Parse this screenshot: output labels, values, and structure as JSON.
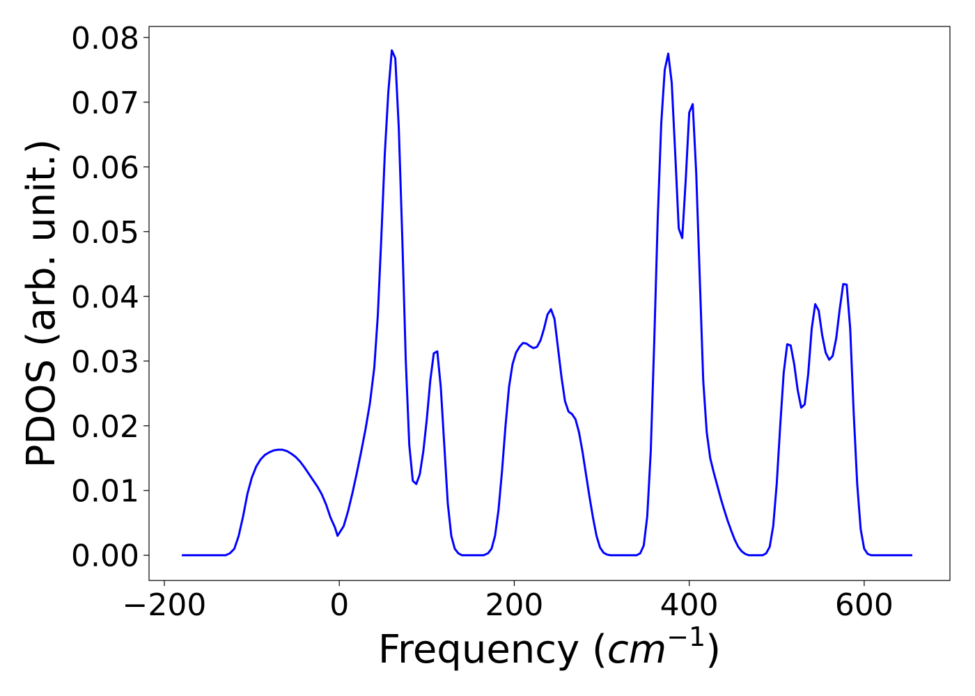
{
  "chart_data": {
    "type": "line",
    "xlabel": {
      "prefix": "Frequency (",
      "italic": "cm",
      "sup": "−1",
      "suffix": ")"
    },
    "ylabel": "PDOS (arb. unit.)",
    "x": [
      -180,
      -130,
      -125,
      -120,
      -115,
      -110,
      -105,
      -100,
      -95,
      -90,
      -85,
      -80,
      -75,
      -70,
      -65,
      -60,
      -55,
      -50,
      -45,
      -40,
      -35,
      -30,
      -25,
      -20,
      -15,
      -10,
      -5,
      -2,
      5,
      10,
      15,
      20,
      25,
      30,
      35,
      40,
      44,
      48,
      52,
      56,
      60,
      64,
      68,
      72,
      76,
      80,
      84,
      88,
      92,
      96,
      100,
      104,
      108,
      112,
      116,
      120,
      124,
      128,
      132,
      136,
      140,
      165,
      170,
      174,
      178,
      182,
      186,
      190,
      194,
      198,
      202,
      206,
      210,
      214,
      218,
      222,
      226,
      230,
      234,
      238,
      242,
      246,
      250,
      254,
      258,
      262,
      266,
      270,
      274,
      278,
      282,
      286,
      290,
      294,
      298,
      302,
      306,
      310,
      340,
      344,
      348,
      352,
      356,
      360,
      364,
      368,
      372,
      376,
      380,
      384,
      388,
      392,
      396,
      400,
      404,
      408,
      412,
      416,
      420,
      424,
      428,
      432,
      436,
      440,
      444,
      448,
      452,
      456,
      460,
      464,
      468,
      484,
      488,
      492,
      496,
      500,
      504,
      508,
      512,
      516,
      520,
      524,
      528,
      532,
      536,
      540,
      544,
      548,
      552,
      556,
      560,
      564,
      568,
      572,
      576,
      580,
      584,
      588,
      592,
      596,
      600,
      604,
      608,
      655
    ],
    "series": [
      {
        "color": "#0000ff",
        "values": [
          0,
          0,
          0.0003,
          0.001,
          0.003,
          0.006,
          0.0095,
          0.012,
          0.0137,
          0.0148,
          0.0155,
          0.0159,
          0.0162,
          0.0163,
          0.0163,
          0.0161,
          0.0157,
          0.0152,
          0.0145,
          0.0136,
          0.0126,
          0.0116,
          0.0106,
          0.0094,
          0.0078,
          0.0058,
          0.0043,
          0.003,
          0.0045,
          0.0068,
          0.0096,
          0.0127,
          0.016,
          0.0195,
          0.0235,
          0.029,
          0.037,
          0.049,
          0.062,
          0.0715,
          0.078,
          0.0768,
          0.066,
          0.049,
          0.03,
          0.017,
          0.0115,
          0.011,
          0.0125,
          0.016,
          0.021,
          0.027,
          0.0312,
          0.0315,
          0.026,
          0.017,
          0.008,
          0.003,
          0.001,
          0.0003,
          0,
          0,
          0.0003,
          0.001,
          0.003,
          0.007,
          0.013,
          0.02,
          0.026,
          0.0295,
          0.0313,
          0.0322,
          0.0328,
          0.0327,
          0.0323,
          0.032,
          0.0322,
          0.0332,
          0.035,
          0.0372,
          0.038,
          0.0365,
          0.032,
          0.0275,
          0.0238,
          0.0222,
          0.0218,
          0.021,
          0.019,
          0.016,
          0.0125,
          0.009,
          0.0058,
          0.003,
          0.0012,
          0.0004,
          0.0001,
          0,
          0,
          0.0003,
          0.0015,
          0.006,
          0.016,
          0.033,
          0.052,
          0.0667,
          0.075,
          0.0775,
          0.073,
          0.062,
          0.0505,
          0.049,
          0.058,
          0.0684,
          0.0697,
          0.059,
          0.043,
          0.027,
          0.019,
          0.015,
          0.0128,
          0.0108,
          0.0088,
          0.007,
          0.0053,
          0.0038,
          0.0024,
          0.0013,
          0.0006,
          0.0002,
          0,
          0,
          0.0003,
          0.0013,
          0.0045,
          0.011,
          0.02,
          0.0282,
          0.0326,
          0.0324,
          0.0295,
          0.0255,
          0.0228,
          0.0233,
          0.028,
          0.035,
          0.0388,
          0.0378,
          0.034,
          0.0313,
          0.0302,
          0.0308,
          0.0335,
          0.038,
          0.0419,
          0.0418,
          0.035,
          0.022,
          0.011,
          0.004,
          0.001,
          0.0002,
          0,
          0
        ]
      }
    ],
    "xlim": [
      -217.5,
      698
    ],
    "ylim": [
      -0.0039,
      0.0817
    ],
    "xticks": [
      {
        "value": -200,
        "label": "−200"
      },
      0,
      200,
      400,
      600
    ],
    "yticks": [
      {
        "value": 0,
        "label": "0.00"
      },
      {
        "value": 0.01,
        "label": "0.01"
      },
      {
        "value": 0.02,
        "label": "0.02"
      },
      {
        "value": 0.03,
        "label": "0.03"
      },
      {
        "value": 0.04,
        "label": "0.04"
      },
      {
        "value": 0.05,
        "label": "0.05"
      },
      {
        "value": 0.06,
        "label": "0.06"
      },
      {
        "value": 0.07,
        "label": "0.07"
      },
      {
        "value": 0.08,
        "label": "0.08"
      }
    ]
  }
}
